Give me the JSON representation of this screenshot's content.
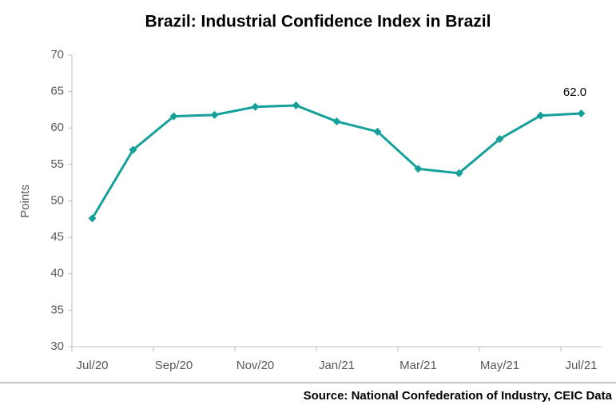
{
  "chart_data": {
    "type": "line",
    "title": "Brazil: Industrial Confidence Index in Brazil",
    "y_label": "Points",
    "source": "Source: National Confederation of Industry, CEIC Data",
    "categories": [
      "Jul/20",
      null,
      "Sep/20",
      null,
      "Nov/20",
      null,
      "Jan/21",
      null,
      "Mar/21",
      null,
      "May/21",
      null,
      "Jul/21"
    ],
    "series": [
      {
        "name": "Industrial Confidence Index",
        "color": "#17a09a",
        "values": [
          47.6,
          57.0,
          61.6,
          61.8,
          62.9,
          63.1,
          60.9,
          59.5,
          54.4,
          53.8,
          58.5,
          61.7,
          62.0
        ],
        "value_labels": [
          null,
          null,
          null,
          null,
          null,
          null,
          null,
          null,
          null,
          null,
          null,
          null,
          "62.0"
        ]
      }
    ],
    "ylim": [
      30,
      70
    ],
    "yticks": [
      30,
      35,
      40,
      45,
      50,
      55,
      60,
      65,
      70
    ],
    "grid": false
  }
}
